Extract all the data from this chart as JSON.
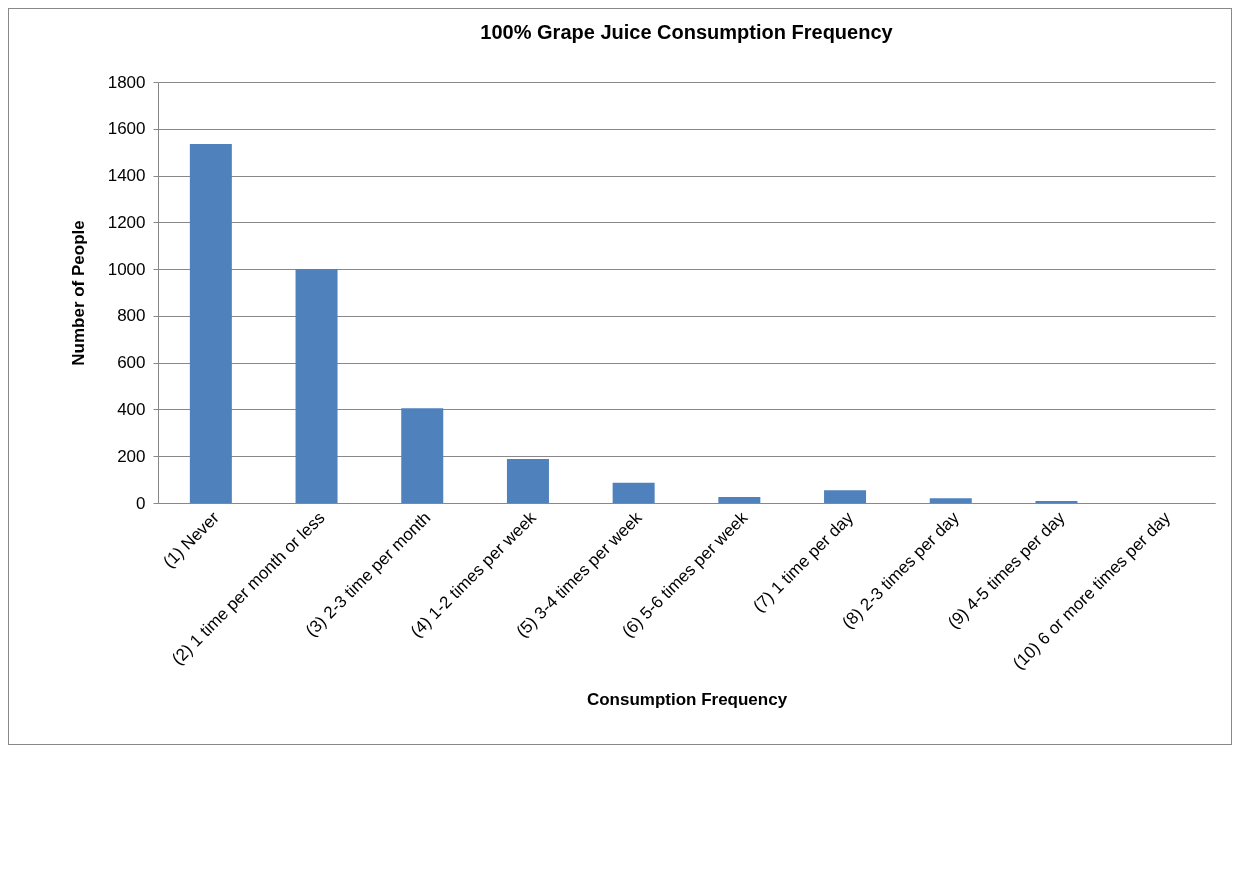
{
  "chart_data": {
    "type": "bar",
    "title": "100% Grape Juice Consumption Frequency",
    "xlabel": "Consumption Frequency",
    "ylabel": "Number of People",
    "categories": [
      "(1) Never",
      "(2) 1 time per month or less",
      "(3) 2-3 time per month",
      "(4) 1-2 times per week",
      "(5) 3-4 times per week",
      "(6) 5-6 times per week",
      "(7) 1 time per day",
      "(8) 2-3 times per day",
      "(9) 4-5 times per day",
      "(10) 6 or more times per day"
    ],
    "values": [
      1535,
      1000,
      405,
      188,
      87,
      26,
      55,
      20,
      9,
      null
    ],
    "color": "#4f81bd",
    "ylim": [
      0,
      1800
    ],
    "yticks": [
      0,
      200,
      400,
      600,
      800,
      1000,
      1200,
      1400,
      1600,
      1800
    ],
    "grid": "y"
  }
}
